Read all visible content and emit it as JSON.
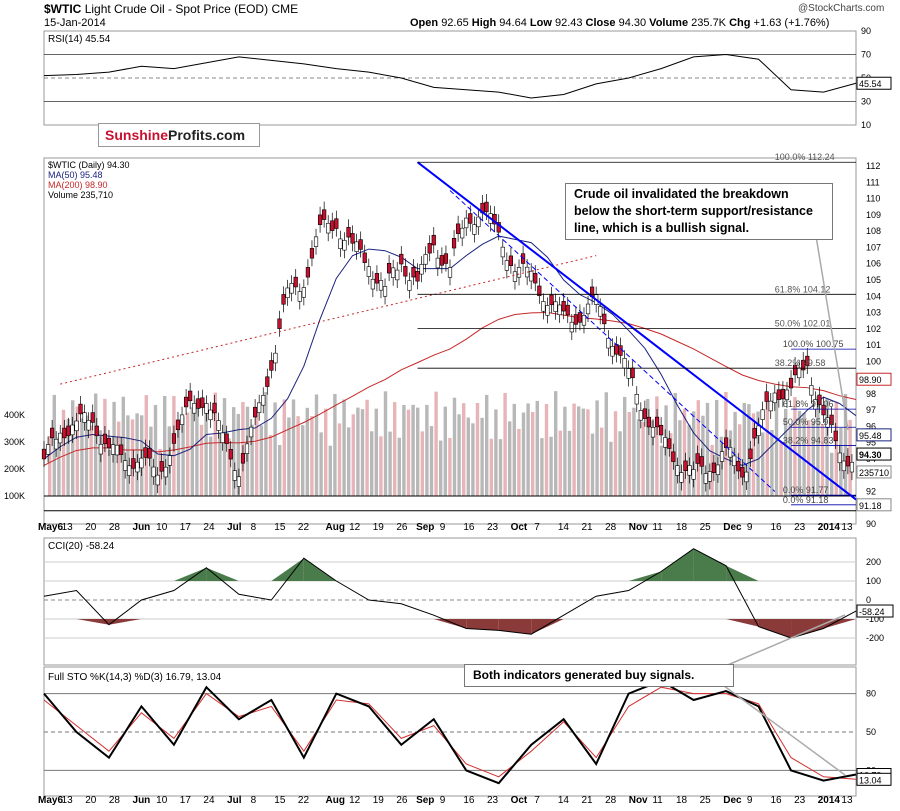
{
  "header": {
    "symbol": "$WTIC",
    "name": "Light Crude Oil - Spot Price (EOD)",
    "exchange": "CME",
    "date": "15-Jan-2014",
    "watermark": "@StockCharts.com",
    "open": "92.65",
    "high": "94.64",
    "low": "92.43",
    "close": "94.30",
    "volume": "235.7K",
    "chg": "+1.63 (+1.76%)"
  },
  "logo": {
    "part1": "Sunshine",
    "part2": "Profits.com"
  },
  "notes": {
    "top": "Crude oil invalidated the breakdown below the short-term support/resistance line, which is a bullish signal.",
    "bottom": "Both indicators generated buy signals."
  },
  "chart_data": [
    {
      "type": "line",
      "panel": "rsi",
      "title": "RSI(14) 45.54",
      "yticks": [
        10,
        30,
        50,
        70,
        90
      ],
      "ylim": [
        10,
        90
      ],
      "last_label": "45.54",
      "x_pct": [
        0,
        4,
        8,
        12,
        16,
        20,
        24,
        28,
        32,
        36,
        40,
        44,
        48,
        52,
        56,
        60,
        64,
        68,
        72,
        76,
        80,
        84,
        88,
        92,
        96,
        100
      ],
      "values": [
        52,
        53,
        55,
        60,
        58,
        63,
        68,
        65,
        62,
        58,
        55,
        50,
        42,
        40,
        38,
        33,
        36,
        45,
        50,
        58,
        68,
        70,
        66,
        40,
        38,
        45.5
      ]
    },
    {
      "type": "candlestick",
      "panel": "price",
      "legend": [
        "$WTIC (Daily) 94.30",
        "MA(50) 95.48",
        "MA(200) 98.90",
        "Volume 235,710"
      ],
      "ylim": [
        90,
        112.5
      ],
      "yticks": [
        90,
        91,
        92,
        93,
        94,
        95,
        96,
        97,
        98,
        99,
        100,
        101,
        102,
        103,
        104,
        105,
        106,
        107,
        108,
        109,
        110,
        111,
        112
      ],
      "volume_ticks": [
        "100K",
        "200K",
        "300K",
        "400K"
      ],
      "price_path_pct": [
        0,
        2,
        4,
        6,
        8,
        10,
        12,
        14,
        16,
        18,
        20,
        22,
        24,
        26,
        28,
        30,
        32,
        34,
        36,
        38,
        40,
        42,
        44,
        46,
        48,
        50,
        52,
        54,
        56,
        58,
        60,
        62,
        64,
        66,
        68,
        70,
        72,
        74,
        76,
        78,
        80,
        82,
        84,
        86,
        88,
        90,
        92,
        94,
        96,
        98,
        100
      ],
      "price_path": [
        94,
        95.5,
        96.5,
        96,
        95,
        93.5,
        94.5,
        92.5,
        95.5,
        97,
        98,
        95,
        93.5,
        96,
        100,
        104,
        105,
        108,
        108.5,
        107,
        106,
        104.5,
        106,
        105,
        107,
        106,
        108.5,
        109.5,
        107.5,
        106,
        105,
        104,
        102.5,
        103,
        103.5,
        101.5,
        99,
        97,
        95,
        94,
        93,
        93.5,
        94.5,
        93,
        96,
        98,
        98.5,
        99.5,
        97,
        94,
        94.3
      ],
      "ma50": {
        "label": "MA(50) 95.48",
        "last": 95.48
      },
      "ma200": {
        "label": "MA(200) 98.90",
        "last": 98.9
      },
      "fibonacci_big": [
        {
          "label": "100.0% 112.24",
          "value": 112.24
        },
        {
          "label": "61.8% 104.12",
          "value": 104.12
        },
        {
          "label": "50.0% 102.01",
          "value": 102.01
        },
        {
          "label": "38.2% 99.58",
          "value": 99.58
        }
      ],
      "fibonacci_small": [
        {
          "label": "100.0% 100.75",
          "value": 100.75
        },
        {
          "label": "61.8% 97.06",
          "value": 97.06
        },
        {
          "label": "50.0% 95.95",
          "value": 95.95
        },
        {
          "label": "38.2% 94.83",
          "value": 94.83
        },
        {
          "label": "0.0% 91.77",
          "value": 91.77
        },
        {
          "label": "0.0% 91.18",
          "value": 91.18
        }
      ],
      "right_labels": [
        "98.90",
        "95.48",
        "94.30",
        "235710",
        "91.18"
      ]
    },
    {
      "type": "area",
      "panel": "cci",
      "title": "CCI(20) -58.24",
      "yticks": [
        200,
        100,
        0,
        -100,
        -200
      ],
      "ylim": [
        -250,
        280
      ],
      "last_label": "-58.24",
      "x_pct": [
        0,
        4,
        8,
        12,
        16,
        20,
        24,
        28,
        32,
        36,
        40,
        44,
        48,
        52,
        56,
        60,
        64,
        68,
        72,
        76,
        80,
        84,
        88,
        92,
        96,
        100
      ],
      "values": [
        20,
        50,
        -130,
        0,
        50,
        170,
        30,
        0,
        220,
        100,
        0,
        -20,
        -80,
        -150,
        -160,
        -180,
        -80,
        20,
        50,
        150,
        270,
        180,
        -140,
        -200,
        -150,
        -58
      ]
    },
    {
      "type": "line",
      "panel": "stochastic",
      "title": "Full STO %K(14,3) %D(3) 16.79, 13.04",
      "yticks": [
        20,
        50,
        80
      ],
      "ylim": [
        0,
        100
      ],
      "labels_right": [
        "16.79",
        "13.04"
      ],
      "x_pct": [
        0,
        4,
        8,
        12,
        16,
        20,
        24,
        28,
        32,
        36,
        40,
        44,
        48,
        52,
        56,
        60,
        64,
        68,
        72,
        76,
        80,
        84,
        88,
        92,
        96,
        100
      ],
      "k_values": [
        80,
        50,
        30,
        70,
        40,
        85,
        60,
        75,
        30,
        80,
        70,
        40,
        60,
        20,
        10,
        40,
        60,
        25,
        80,
        90,
        75,
        82,
        70,
        20,
        12,
        16.79
      ],
      "d_values": [
        75,
        55,
        35,
        65,
        45,
        80,
        62,
        70,
        35,
        75,
        72,
        45,
        55,
        25,
        15,
        35,
        58,
        30,
        70,
        85,
        80,
        80,
        72,
        30,
        15,
        13.04
      ]
    }
  ],
  "x_axis": {
    "labels": [
      "May6",
      "13",
      "20",
      "28",
      "Jun",
      "10",
      "17",
      "24",
      "Jul",
      "8",
      "15",
      "22",
      "Aug",
      "12",
      "19",
      "26",
      "Sep",
      "9",
      "16",
      "23",
      "Oct",
      "7",
      "14",
      "21",
      "28",
      "Nov",
      "11",
      "18",
      "25",
      "Dec",
      "9",
      "16",
      "23",
      "2014",
      "13"
    ],
    "bold_labels": [
      "May6",
      "Jun",
      "Jul",
      "Aug",
      "Sep",
      "Oct",
      "Nov",
      "Dec",
      "2014"
    ]
  },
  "colors": {
    "up": "#ffffff",
    "down": "#c8102e",
    "ma50": "#1a237e",
    "ma200": "#c62828",
    "trend": "#0000ff",
    "fill_pos": "#4a7b4a",
    "fill_neg": "#8b3a3a"
  }
}
